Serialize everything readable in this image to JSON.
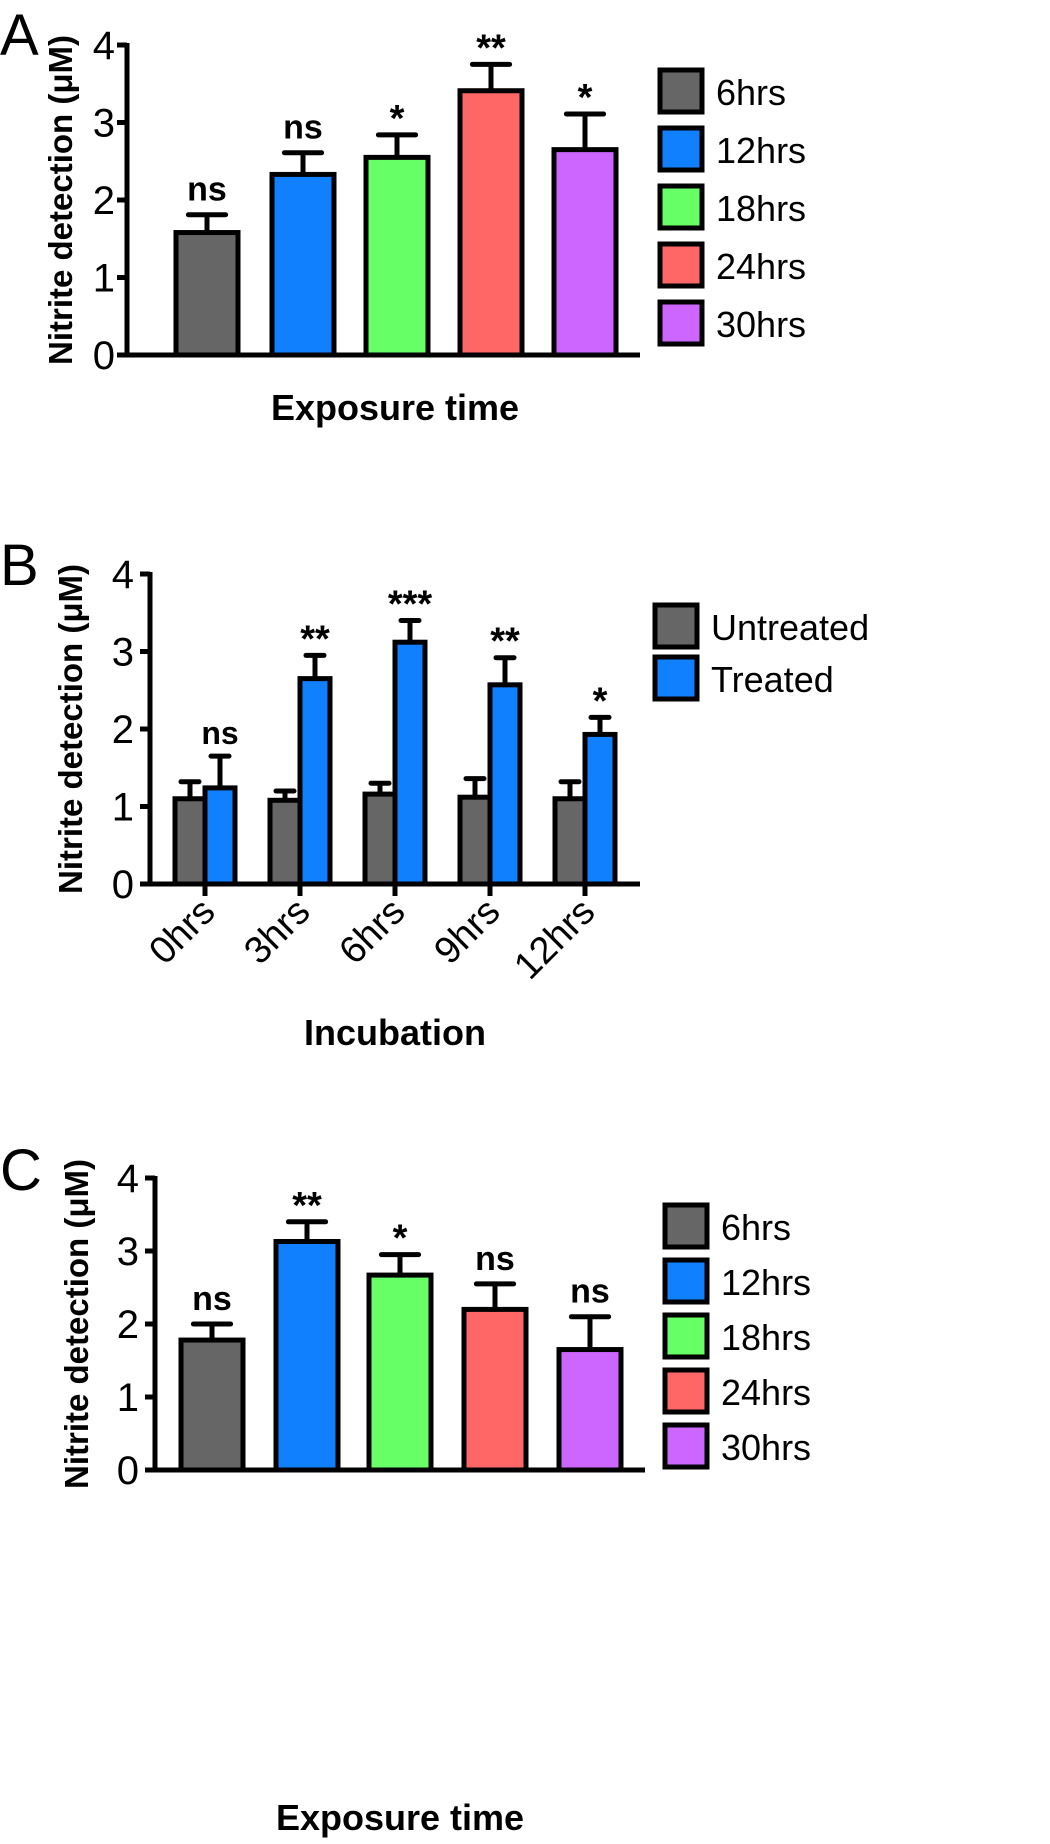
{
  "colors": {
    "6hrs": "#666666",
    "12hrs": "#1180ff",
    "18hrs": "#66ff66",
    "24hrs": "#ff6666",
    "30hrs": "#cc66ff",
    "untreated": "#666666",
    "treated": "#1180ff"
  },
  "chart_data": [
    {
      "panel": "A",
      "type": "bar",
      "ylabel": "Nitrite detection (μM)",
      "xlabel": "Exposure time",
      "ylim": [
        0,
        4
      ],
      "yticks": [
        "0",
        "1",
        "2",
        "3",
        "4"
      ],
      "categories": [
        "6hrs",
        "12hrs",
        "18hrs",
        "24hrs",
        "30hrs"
      ],
      "values": [
        1.58,
        2.33,
        2.55,
        3.41,
        2.65
      ],
      "errors_upper": [
        1.81,
        2.61,
        2.84,
        3.75,
        3.11
      ],
      "significance": [
        "ns",
        "ns",
        "*",
        "**",
        "*"
      ],
      "legend": [
        "6hrs",
        "12hrs",
        "18hrs",
        "24hrs",
        "30hrs"
      ],
      "legend_position": "right"
    },
    {
      "panel": "B",
      "type": "bar",
      "ylabel": "Nitrite detection (μM)",
      "xlabel": "Incubation",
      "ylim": [
        0,
        4
      ],
      "yticks": [
        "0",
        "1",
        "2",
        "3",
        "4"
      ],
      "categories": [
        "0hrs",
        "3hrs",
        "6hrs",
        "9hrs",
        "12hrs"
      ],
      "series": [
        {
          "name": "Untreated",
          "values": [
            1.1,
            1.08,
            1.16,
            1.12,
            1.1
          ],
          "errors_upper": [
            1.32,
            1.2,
            1.3,
            1.36,
            1.32
          ]
        },
        {
          "name": "Treated",
          "values": [
            1.24,
            2.65,
            3.12,
            2.57,
            1.93
          ],
          "errors_upper": [
            1.65,
            2.95,
            3.4,
            2.92,
            2.15
          ]
        }
      ],
      "significance": [
        "ns",
        "**",
        "***",
        "**",
        "*"
      ],
      "legend": [
        "Untreated",
        "Treated"
      ],
      "legend_position": "right"
    },
    {
      "panel": "C",
      "type": "bar",
      "ylabel": "Nitrite detection (μM)",
      "xlabel": "Exposure time",
      "ylim": [
        0,
        4
      ],
      "yticks": [
        "0",
        "1",
        "2",
        "3",
        "4"
      ],
      "categories": [
        "6hrs",
        "12hrs",
        "18hrs",
        "24hrs",
        "30hrs"
      ],
      "values": [
        1.78,
        3.13,
        2.67,
        2.2,
        1.65
      ],
      "errors_upper": [
        2.0,
        3.4,
        2.95,
        2.55,
        2.1
      ],
      "significance": [
        "ns",
        "**",
        "*",
        "ns",
        "ns"
      ],
      "legend": [
        "6hrs",
        "12hrs",
        "18hrs",
        "24hrs",
        "30hrs"
      ],
      "legend_position": "right"
    }
  ]
}
